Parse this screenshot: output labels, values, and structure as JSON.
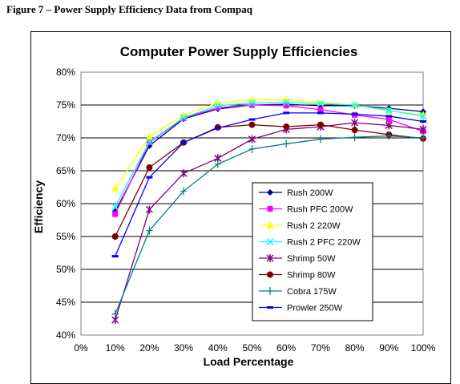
{
  "figure_caption": "Figure 7 – Power Supply Efficiency Data from Compaq",
  "chart_data": {
    "type": "line",
    "title": "Computer Power Supply Efficiencies",
    "xlabel": "Load Percentage",
    "ylabel": "Efficiency",
    "x": [
      10,
      20,
      30,
      40,
      50,
      60,
      70,
      80,
      90,
      100
    ],
    "x_ticks": [
      "0%",
      "10%",
      "20%",
      "30%",
      "40%",
      "50%",
      "60%",
      "70%",
      "80%",
      "90%",
      "100%"
    ],
    "xlim": [
      0,
      100
    ],
    "y_ticks": [
      "40%",
      "45%",
      "50%",
      "55%",
      "60%",
      "65%",
      "70%",
      "75%",
      "80%"
    ],
    "ylim": [
      40,
      80
    ],
    "grid": "horizontal",
    "legend_position": "center-right",
    "series": [
      {
        "name": "Rush 200W",
        "color": "#000080",
        "marker": "diamond",
        "values": [
          58.8,
          68.8,
          72.9,
          74.4,
          75.0,
          75.1,
          74.9,
          74.9,
          74.5,
          74.0
        ]
      },
      {
        "name": "Rush PFC 200W",
        "color": "#ff00ff",
        "marker": "square",
        "values": [
          58.4,
          69.3,
          73.0,
          74.6,
          75.0,
          74.9,
          74.3,
          73.5,
          72.8,
          71.0
        ]
      },
      {
        "name": "Rush 2 220W",
        "color": "#ffff00",
        "marker": "triangle",
        "values": [
          62.3,
          70.2,
          73.5,
          75.3,
          75.8,
          75.8,
          75.4,
          75.0,
          74.1,
          73.5
        ]
      },
      {
        "name": "Rush 2 PFC 220W",
        "color": "#00ffff",
        "marker": "x",
        "values": [
          59.5,
          69.4,
          73.1,
          74.9,
          75.3,
          75.4,
          75.2,
          75.0,
          74.2,
          73.3
        ]
      },
      {
        "name": "Shrimp 50W",
        "color": "#800080",
        "marker": "star",
        "values": [
          42.3,
          59.1,
          64.6,
          66.9,
          69.8,
          71.3,
          71.7,
          72.3,
          71.9,
          71.3
        ]
      },
      {
        "name": "Shrimp 80W",
        "color": "#800000",
        "marker": "circle",
        "values": [
          55.0,
          65.5,
          69.3,
          71.6,
          72.0,
          71.7,
          72.0,
          71.2,
          70.5,
          69.9
        ]
      },
      {
        "name": "Cobra 175W",
        "color": "#008080",
        "marker": "plus",
        "values": [
          43.2,
          55.9,
          61.9,
          66.0,
          68.3,
          69.1,
          69.8,
          70.1,
          70.3,
          70.0
        ]
      },
      {
        "name": "Prowler 250W",
        "color": "#0000ff",
        "marker": "dash",
        "values": [
          52.0,
          64.0,
          69.3,
          71.5,
          72.8,
          73.8,
          73.8,
          73.6,
          73.3,
          72.5
        ]
      }
    ]
  }
}
